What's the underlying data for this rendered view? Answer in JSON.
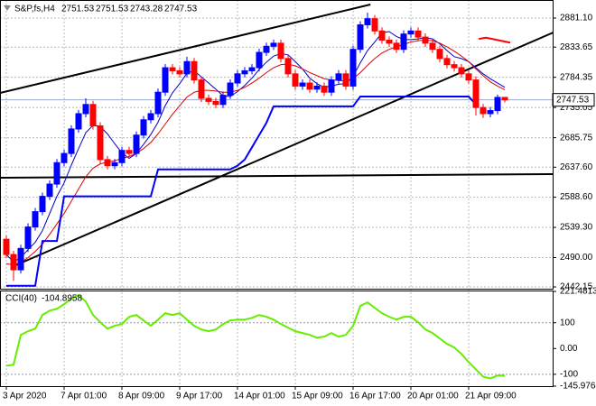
{
  "chart_data": {
    "type": "candlestick",
    "title": "S&P,fs,H4",
    "categories": [
      "3 Apr 2020",
      null,
      null,
      null,
      null,
      null,
      null,
      null,
      "7 Apr 01:00",
      null,
      null,
      null,
      null,
      null,
      null,
      null,
      "8 Apr 09:00",
      null,
      null,
      null,
      null,
      null,
      null,
      null,
      "9 Apr 17:00",
      null,
      null,
      null,
      null,
      null,
      null,
      null,
      "14 Apr 01:00",
      null,
      null,
      null,
      null,
      null,
      null,
      null,
      "15 Apr 09:00",
      null,
      null,
      null,
      null,
      null,
      null,
      null,
      "16 Apr 17:00",
      null,
      null,
      null,
      null,
      null,
      null,
      null,
      "20 Apr 01:00",
      null,
      null,
      null,
      null,
      null,
      null,
      null,
      "21 Apr 09:00",
      null,
      null,
      null,
      null,
      null
    ],
    "open": [
      2520,
      2495,
      2470,
      2505,
      2540,
      2565,
      2590,
      2610,
      2645,
      2660,
      2700,
      2725,
      2740,
      2705,
      2650,
      2640,
      2645,
      2665,
      2660,
      2690,
      2715,
      2725,
      2760,
      2800,
      2795,
      2790,
      2810,
      2780,
      2750,
      2745,
      2740,
      2755,
      2775,
      2790,
      2795,
      2800,
      2825,
      2835,
      2840,
      2815,
      2790,
      2770,
      2775,
      2765,
      2770,
      2760,
      2780,
      2790,
      2770,
      2830,
      2870,
      2880,
      2860,
      2845,
      2840,
      2830,
      2855,
      2860,
      2850,
      2840,
      2830,
      2815,
      2805,
      2800,
      2790,
      2780,
      2735,
      2725,
      2730,
      2751.53
    ],
    "high": [
      2526,
      2501,
      2511,
      2546,
      2571,
      2596,
      2616,
      2651,
      2666,
      2706,
      2731,
      2750,
      2746,
      2711,
      2656,
      2651,
      2671,
      2671,
      2696,
      2721,
      2731,
      2766,
      2806,
      2806,
      2801,
      2818,
      2816,
      2786,
      2756,
      2751,
      2761,
      2781,
      2796,
      2801,
      2806,
      2831,
      2841,
      2846,
      2846,
      2821,
      2796,
      2781,
      2781,
      2776,
      2776,
      2786,
      2796,
      2796,
      2836,
      2876,
      2890,
      2886,
      2866,
      2851,
      2846,
      2861,
      2866,
      2866,
      2856,
      2846,
      2836,
      2821,
      2811,
      2806,
      2796,
      2786,
      2741,
      2736,
      2756,
      2751.53
    ],
    "low": [
      2489,
      2452,
      2464,
      2499,
      2534,
      2559,
      2584,
      2604,
      2639,
      2654,
      2694,
      2719,
      2699,
      2644,
      2634,
      2634,
      2639,
      2654,
      2654,
      2684,
      2709,
      2719,
      2754,
      2789,
      2784,
      2784,
      2774,
      2744,
      2739,
      2734,
      2734,
      2749,
      2769,
      2784,
      2789,
      2794,
      2819,
      2829,
      2809,
      2784,
      2764,
      2764,
      2759,
      2759,
      2754,
      2754,
      2774,
      2764,
      2764,
      2824,
      2864,
      2854,
      2839,
      2834,
      2824,
      2824,
      2849,
      2844,
      2834,
      2824,
      2809,
      2799,
      2794,
      2784,
      2774,
      2722,
      2718,
      2719,
      2724,
      2743.28
    ],
    "close": [
      2495,
      2470,
      2505,
      2540,
      2565,
      2590,
      2610,
      2645,
      2660,
      2700,
      2725,
      2740,
      2705,
      2650,
      2640,
      2645,
      2665,
      2660,
      2690,
      2715,
      2725,
      2760,
      2800,
      2795,
      2790,
      2810,
      2780,
      2750,
      2745,
      2740,
      2755,
      2775,
      2790,
      2795,
      2800,
      2825,
      2835,
      2840,
      2815,
      2790,
      2770,
      2775,
      2765,
      2770,
      2760,
      2780,
      2790,
      2770,
      2830,
      2870,
      2880,
      2860,
      2845,
      2840,
      2830,
      2855,
      2860,
      2850,
      2840,
      2830,
      2815,
      2805,
      2800,
      2790,
      2780,
      2735,
      2725,
      2730,
      2751.53,
      2747.53
    ],
    "up_color": "#0000ff",
    "down_color": "#ff0000",
    "ylim": [
      2439.2,
      2907.6
    ],
    "yticks": [
      {
        "value": 2881.1,
        "label": "2881.10"
      },
      2833.65,
      2784.35,
      2735.05,
      2685.75,
      {
        "value": 2637.6,
        "label": "2637.60"
      },
      {
        "value": 2588.6,
        "label": "2588.60"
      },
      {
        "value": 2539.3,
        "label": "2539.30"
      },
      {
        "value": 2490,
        "label": "2490.00"
      },
      2442.15
    ],
    "grid": true,
    "overlays": [
      {
        "color": "#0000cc",
        "width": 1,
        "values": [
          2495,
          2483,
          2490,
          2503,
          2515,
          2534,
          2562,
          2590,
          2612,
          2641,
          2668,
          2694,
          2706,
          2704,
          2692,
          2676,
          2661,
          2652,
          2660,
          2675,
          2691,
          2711,
          2738,
          2759,
          2774,
          2791,
          2795,
          2785,
          2775,
          2765,
          2754,
          2753,
          2761,
          2771,
          2783,
          2797,
          2809,
          2819,
          2823,
          2821,
          2810,
          2798,
          2783,
          2774,
          2768,
          2770,
          2773,
          2774,
          2786,
          2808,
          2828,
          2842,
          2857,
          2859,
          2851,
          2846,
          2846,
          2847,
          2849,
          2847,
          2839,
          2828,
          2818,
          2815,
          2810,
          2800,
          2790,
          2782,
          2775,
          2768
        ]
      },
      {
        "color": "#dd0000",
        "width": 1,
        "values": [
          2480,
          2478,
          2482,
          2490,
          2500,
          2512,
          2528,
          2545,
          2562,
          2582,
          2602,
          2622,
          2636,
          2643,
          2646,
          2648,
          2652,
          2655,
          2660,
          2668,
          2678,
          2692,
          2708,
          2724,
          2738,
          2752,
          2760,
          2763,
          2763,
          2762,
          2760,
          2760,
          2763,
          2768,
          2775,
          2783,
          2792,
          2800,
          2805,
          2806,
          2803,
          2798,
          2792,
          2787,
          2782,
          2780,
          2779,
          2778,
          2782,
          2792,
          2804,
          2815,
          2824,
          2830,
          2834,
          2838,
          2842,
          2844,
          2845,
          2844,
          2840,
          2834,
          2827,
          2819,
          2810,
          2798,
          2787,
          2777,
          2770,
          2764
        ]
      },
      {
        "color": "#0000ff",
        "width": 2,
        "values": [
          2444,
          2444,
          2444,
          2444,
          2444,
          2517,
          2517,
          2517,
          2590,
          2590,
          2590,
          2590,
          2590,
          2590,
          2590,
          2590,
          2590,
          2590,
          2590,
          2590,
          2590,
          2634,
          2634,
          2634,
          2634,
          2634,
          2634,
          2634,
          2634,
          2634,
          2634,
          2634,
          2640,
          2650,
          2670,
          2690,
          2710,
          2737,
          2737,
          2737,
          2737,
          2737,
          2737,
          2737,
          2737,
          2737,
          2737,
          2737,
          2737,
          2753,
          2753,
          2753,
          2753,
          2753,
          2753,
          2753,
          2753,
          2753,
          2753,
          2753,
          2753,
          2753,
          2753,
          2753,
          2753,
          2740,
          null,
          null,
          null,
          null
        ]
      }
    ],
    "trendlines": [
      {
        "color": "#000000",
        "x": [
          -0.875,
          50.4
        ],
        "y": [
          2758.8,
          2903.2
        ]
      },
      {
        "color": "#000000",
        "x": [
          1,
          76
        ],
        "y": [
          2476,
          2859
        ]
      },
      {
        "color": "#000000",
        "x": [
          -0.875,
          76
        ],
        "y": [
          2620.4,
          2626.3
        ]
      },
      {
        "color": "#ff0000",
        "x": [
          65.4,
          66.4,
          69.75
        ],
        "y": [
          2847,
          2849,
          2841
        ]
      }
    ],
    "indicator": {
      "type": "line",
      "title": "CCI(40)",
      "color": "#66ee00",
      "values": [
        -67,
        -63,
        53,
        67,
        77,
        130,
        147,
        154,
        172,
        193,
        207,
        182,
        130,
        102,
        77,
        88,
        95,
        123,
        130,
        109,
        88,
        112,
        137,
        130,
        137,
        112,
        88,
        74,
        67,
        74,
        95,
        109,
        112,
        112,
        119,
        130,
        123,
        112,
        95,
        81,
        67,
        60,
        53,
        42,
        46,
        60,
        46,
        53,
        88,
        165,
        179,
        158,
        137,
        123,
        112,
        123,
        123,
        102,
        74,
        60,
        39,
        18,
        4,
        -21,
        -53,
        -81,
        -109,
        -116,
        -105,
        -104.8958
      ],
      "ylim": [
        -145.9764,
        221.4813
      ],
      "yticks": [
        221.4813,
        100,
        {
          "value": 0,
          "label": "0.00"
        },
        -100,
        -145.9764
      ],
      "levels": [
        100,
        -100
      ]
    }
  }
}
